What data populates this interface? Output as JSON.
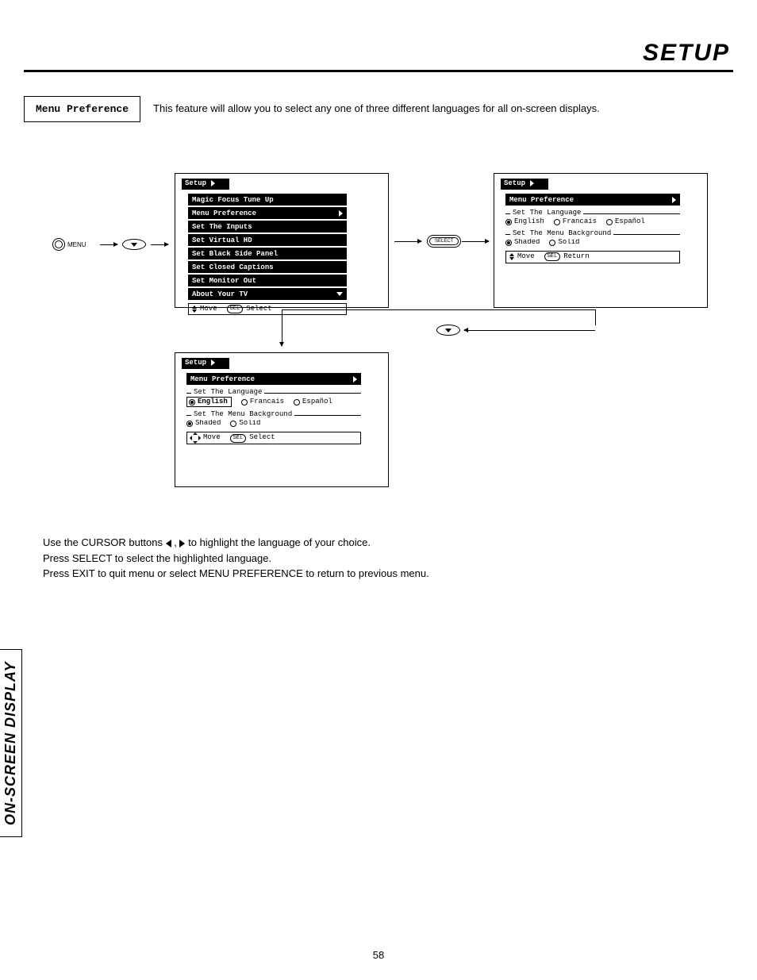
{
  "page": {
    "header": "SETUP",
    "side_tab": "ON-SCREEN DISPLAY",
    "number": "58"
  },
  "intro": {
    "feature_label": "Menu Preference",
    "text": "This feature will allow you to select any one of three different languages for all on-screen displays."
  },
  "buttons": {
    "menu": "MENU",
    "select": "SELECT",
    "sel_short": "SEL"
  },
  "osd1": {
    "title": "Setup",
    "items": [
      {
        "label": "Magic Focus Tune Up",
        "arrow": "none"
      },
      {
        "label": "Menu Preference",
        "arrow": "right"
      },
      {
        "label": "Set The Inputs",
        "arrow": "none"
      },
      {
        "label": "Set Virtual HD",
        "arrow": "none"
      },
      {
        "label": "Set Black Side Panel",
        "arrow": "none"
      },
      {
        "label": "Set Closed Captions",
        "arrow": "none"
      },
      {
        "label": "Set Monitor Out",
        "arrow": "none"
      },
      {
        "label": "About Your TV",
        "arrow": "down"
      }
    ],
    "hint_move": "Move",
    "hint_select": "Select"
  },
  "osd2": {
    "title": "Setup",
    "crumb": "Menu Preference",
    "lang_legend": "Set The Language",
    "lang_opts": [
      "English",
      "Francais",
      "Español"
    ],
    "lang_sel": 0,
    "bg_legend": "Set The Menu Background",
    "bg_opts": [
      "Shaded",
      "Solid"
    ],
    "bg_sel": 0,
    "hint_move": "Move",
    "hint_return": "Return"
  },
  "osd3": {
    "title": "Setup",
    "crumb": "Menu Preference",
    "lang_legend": "Set The Language",
    "lang_opts": [
      "English",
      "Francais",
      "Español"
    ],
    "lang_sel": 0,
    "bg_legend": "Set The Menu Background",
    "bg_opts": [
      "Shaded",
      "Solid"
    ],
    "bg_sel": 0,
    "hint_move": "Move",
    "hint_select": "Select"
  },
  "body": {
    "l1_a": "Use the CURSOR buttons ",
    "l1_b": " , ",
    "l1_c": " to highlight the language of your choice.",
    "l2": "Press SELECT to select the highlighted language.",
    "l3": "Press EXIT to quit menu or select MENU PREFERENCE to return to previous menu."
  }
}
